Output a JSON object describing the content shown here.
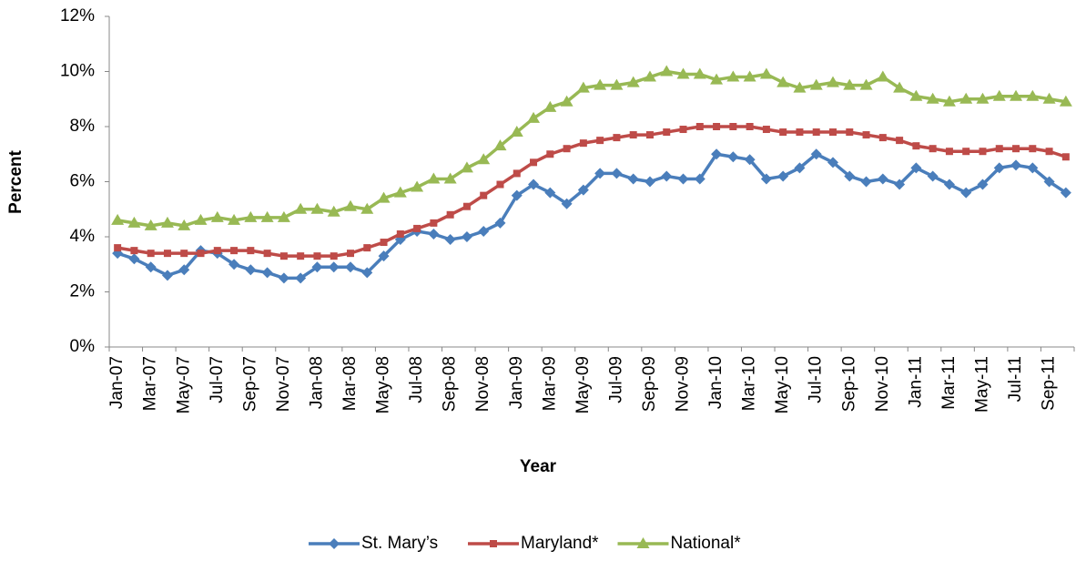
{
  "chart_data": {
    "type": "line",
    "x_label": "Year",
    "y_label": "Percent",
    "categories": [
      "Jan-07",
      null,
      "Mar-07",
      null,
      "May-07",
      null,
      "Jul-07",
      null,
      "Sep-07",
      null,
      "Nov-07",
      null,
      "Jan-08",
      null,
      "Mar-08",
      null,
      "May-08",
      null,
      "Jul-08",
      null,
      "Sep-08",
      null,
      "Nov-08",
      null,
      "Jan-09",
      null,
      "Mar-09",
      null,
      "May-09",
      null,
      "Jul-09",
      null,
      "Sep-09",
      null,
      "Nov-09",
      null,
      "Jan-10",
      null,
      "Mar-10",
      null,
      "May-10",
      null,
      "Jul-10",
      null,
      "Sep-10",
      null,
      "Nov-10",
      null,
      "Jan-11",
      null,
      "Mar-11",
      null,
      "May-11",
      null,
      "Jul-11",
      null,
      "Sep-11",
      null
    ],
    "series": [
      {
        "name": "St. Mary’s",
        "color": "#4a7ebb",
        "marker": "diamond",
        "values": [
          3.4,
          3.2,
          2.9,
          2.6,
          2.8,
          3.5,
          3.4,
          3.0,
          2.8,
          2.7,
          2.5,
          2.5,
          2.9,
          2.9,
          2.9,
          2.7,
          3.3,
          3.9,
          4.2,
          4.1,
          3.9,
          4.0,
          4.2,
          4.5,
          5.5,
          5.9,
          5.6,
          5.2,
          5.7,
          6.3,
          6.3,
          6.1,
          6.0,
          6.2,
          6.1,
          6.1,
          7.0,
          6.9,
          6.8,
          6.1,
          6.2,
          6.5,
          7.0,
          6.7,
          6.2,
          6.0,
          6.1,
          5.9,
          6.5,
          6.2,
          5.9,
          5.6,
          5.9,
          6.5,
          6.6,
          6.5,
          6.0,
          5.6
        ]
      },
      {
        "name": "Maryland*",
        "color": "#be4b48",
        "marker": "square",
        "values": [
          3.6,
          3.5,
          3.4,
          3.4,
          3.4,
          3.4,
          3.5,
          3.5,
          3.5,
          3.4,
          3.3,
          3.3,
          3.3,
          3.3,
          3.4,
          3.6,
          3.8,
          4.1,
          4.3,
          4.5,
          4.8,
          5.1,
          5.5,
          5.9,
          6.3,
          6.7,
          7.0,
          7.2,
          7.4,
          7.5,
          7.6,
          7.7,
          7.7,
          7.8,
          7.9,
          8.0,
          8.0,
          8.0,
          8.0,
          7.9,
          7.8,
          7.8,
          7.8,
          7.8,
          7.8,
          7.7,
          7.6,
          7.5,
          7.3,
          7.2,
          7.1,
          7.1,
          7.1,
          7.2,
          7.2,
          7.2,
          7.1,
          6.9
        ]
      },
      {
        "name": "National*",
        "color": "#98b954",
        "marker": "triangle",
        "values": [
          4.6,
          4.5,
          4.4,
          4.5,
          4.4,
          4.6,
          4.7,
          4.6,
          4.7,
          4.7,
          4.7,
          5.0,
          5.0,
          4.9,
          5.1,
          5.0,
          5.4,
          5.6,
          5.8,
          6.1,
          6.1,
          6.5,
          6.8,
          7.3,
          7.8,
          8.3,
          8.7,
          8.9,
          9.4,
          9.5,
          9.5,
          9.6,
          9.8,
          10.0,
          9.9,
          9.9,
          9.7,
          9.8,
          9.8,
          9.9,
          9.6,
          9.4,
          9.5,
          9.6,
          9.5,
          9.5,
          9.8,
          9.4,
          9.1,
          9.0,
          8.9,
          9.0,
          9.0,
          9.1,
          9.1,
          9.1,
          9.0,
          8.9
        ]
      }
    ],
    "ylim": [
      0,
      12
    ],
    "yticks": [
      {
        "value": 0,
        "label": "0%"
      },
      {
        "value": 2,
        "label": "2%"
      },
      {
        "value": 4,
        "label": "4%"
      },
      {
        "value": 6,
        "label": "6%"
      },
      {
        "value": 8,
        "label": "8%"
      },
      {
        "value": 10,
        "label": "10%"
      },
      {
        "value": 12,
        "label": "12%"
      }
    ],
    "grid": false,
    "legend": "bottom"
  }
}
